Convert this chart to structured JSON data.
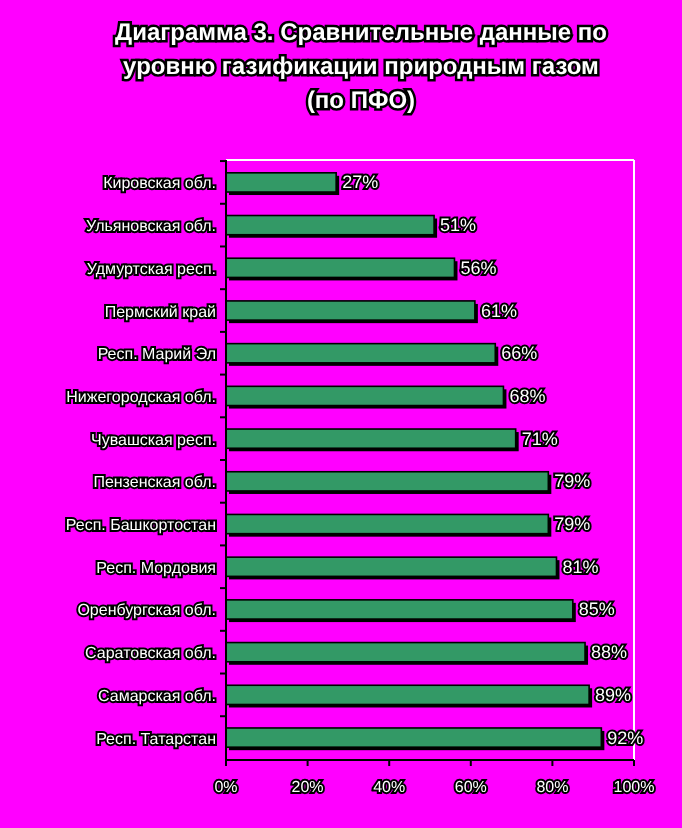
{
  "chart_data": {
    "type": "bar",
    "orientation": "horizontal",
    "title": "Диаграмма 3. Сравнительные данные по уровню газификации природным газом (по ПФО)",
    "categories": [
      "Кировская обл.",
      "Ульяновская обл.",
      "Удмуртская респ.",
      "Пермский край",
      "Респ. Марий Эл",
      "Нижегородская обл.",
      "Чувашская респ.",
      "Пензенская обл.",
      "Респ. Башкортостан",
      "Респ. Мордовия",
      "Оренбургская обл.",
      "Саратовская обл.",
      "Самарская обл.",
      "Респ. Татарстан"
    ],
    "values": [
      27,
      51,
      56,
      61,
      66,
      68,
      71,
      79,
      79,
      81,
      85,
      88,
      89,
      92
    ],
    "value_labels": [
      "27%",
      "51%",
      "56%",
      "61%",
      "66%",
      "68%",
      "71%",
      "79%",
      "79%",
      "81%",
      "85%",
      "88%",
      "89%",
      "92%"
    ],
    "color": "#339966",
    "xlim": [
      0,
      100
    ],
    "xticks": [
      {
        "value": 0,
        "label": "0%"
      },
      {
        "value": 20,
        "label": "20%"
      },
      {
        "value": 40,
        "label": "40%"
      },
      {
        "value": 60,
        "label": "60%"
      },
      {
        "value": 80,
        "label": "80%"
      },
      {
        "value": 100,
        "label": "100%"
      }
    ]
  }
}
